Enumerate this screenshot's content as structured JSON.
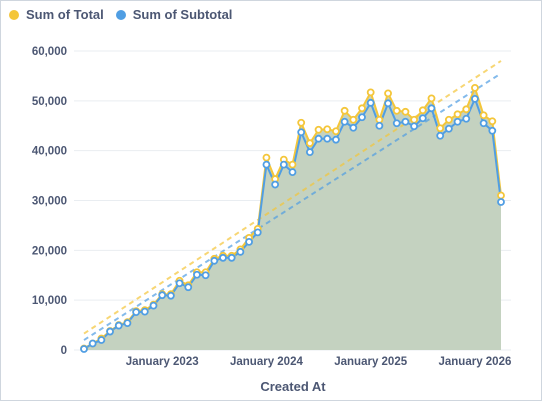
{
  "colors": {
    "total": "#f4c63a",
    "subtotal": "#509ee3",
    "area": "#c4d2c0",
    "axis_text": "#4c5773",
    "grid": "#e9edf1"
  },
  "chart_data": {
    "type": "line",
    "xlabel": "Created At",
    "ylabel": "",
    "ylim": [
      0,
      60000
    ],
    "yticks": [
      0,
      10000,
      20000,
      30000,
      40000,
      50000,
      60000
    ],
    "ytick_labels": [
      "0",
      "10,000",
      "20,000",
      "30,000",
      "40,000",
      "50,000",
      "60,000"
    ],
    "xlim": [
      "2022-04",
      "2026-05"
    ],
    "xticks": [
      {
        "date": "2023-01",
        "label": "January 2023"
      },
      {
        "date": "2024-01",
        "label": "January 2024"
      },
      {
        "date": "2025-01",
        "label": "January 2025"
      },
      {
        "date": "2026-01",
        "label": "January 2026"
      }
    ],
    "legend_position": "top-left",
    "grid": {
      "horizontal": true,
      "vertical": false
    },
    "x": [
      "2022-04",
      "2022-05",
      "2022-06",
      "2022-07",
      "2022-08",
      "2022-09",
      "2022-10",
      "2022-11",
      "2022-12",
      "2023-01",
      "2023-02",
      "2023-03",
      "2023-04",
      "2023-05",
      "2023-06",
      "2023-07",
      "2023-08",
      "2023-09",
      "2023-10",
      "2023-11",
      "2023-12",
      "2024-01",
      "2024-02",
      "2024-03",
      "2024-04",
      "2024-05",
      "2024-06",
      "2024-07",
      "2024-08",
      "2024-09",
      "2024-10",
      "2024-11",
      "2024-12",
      "2025-01",
      "2025-02",
      "2025-03",
      "2025-04",
      "2025-05",
      "2025-06",
      "2025-07",
      "2025-08",
      "2025-09",
      "2025-10",
      "2025-11",
      "2025-12",
      "2026-01",
      "2026-02",
      "2026-03",
      "2026-04"
    ],
    "series": [
      {
        "name": "Sum of Total",
        "color": "#f4c63a",
        "values": [
          300,
          1300,
          2300,
          3800,
          5000,
          5600,
          7800,
          8000,
          9100,
          11200,
          11200,
          13900,
          13000,
          15600,
          15600,
          18300,
          18900,
          18900,
          20200,
          22500,
          24300,
          38600,
          34300,
          38200,
          37200,
          45600,
          41500,
          44200,
          44300,
          43900,
          48000,
          46200,
          48500,
          51700,
          46200,
          51500,
          48000,
          47800,
          46200,
          48100,
          50500,
          44500,
          46200,
          47300,
          48300,
          52600,
          47100,
          45900,
          31000
        ]
      },
      {
        "name": "Sum of Subtotal",
        "color": "#509ee3",
        "values": [
          200,
          1300,
          2000,
          3700,
          4900,
          5400,
          7600,
          7700,
          8900,
          11000,
          10900,
          13400,
          12600,
          15100,
          15000,
          17900,
          18500,
          18500,
          19700,
          21700,
          23600,
          37200,
          33200,
          37200,
          35700,
          43700,
          39700,
          42400,
          42400,
          42200,
          45800,
          44600,
          46700,
          49600,
          45000,
          49500,
          45500,
          45800,
          44900,
          46500,
          48500,
          43000,
          44400,
          45800,
          46400,
          50400,
          45500,
          44000,
          29700
        ]
      }
    ],
    "trendlines": [
      {
        "series": "Sum of Total",
        "start": [
          "2022-04",
          3300
        ],
        "end": [
          "2026-04",
          58000
        ]
      },
      {
        "series": "Sum of Subtotal",
        "start": [
          "2022-04",
          2000
        ],
        "end": [
          "2026-04",
          55500
        ]
      }
    ]
  }
}
